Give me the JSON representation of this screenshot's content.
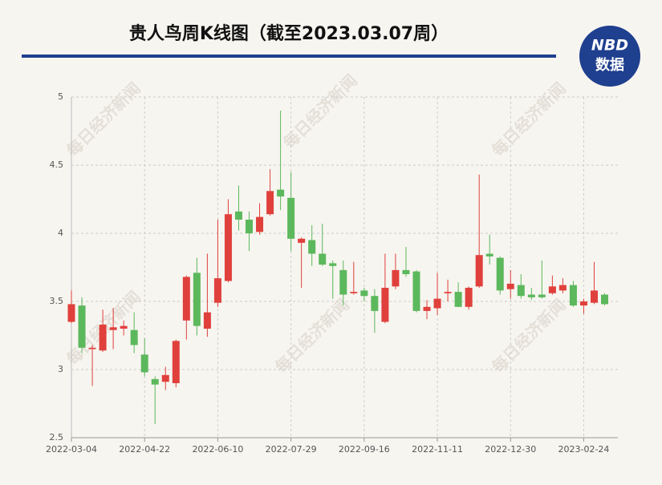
{
  "chart_data": {
    "type": "candlestick",
    "title": "贵人鸟周K线图（截至2023.03.07周）",
    "logo": {
      "line1": "NBD",
      "line2": "数据"
    },
    "watermark": "每日经济新闻",
    "up_color": "#e0403c",
    "down_color": "#5cb85c",
    "grid": true,
    "ylim": [
      2.5,
      5
    ],
    "yticks": [
      2.5,
      3,
      3.5,
      4,
      4.5,
      5
    ],
    "categories": [
      "2022-03-04",
      null,
      null,
      null,
      null,
      null,
      null,
      "2022-04-22",
      null,
      null,
      null,
      null,
      null,
      null,
      "2022-06-10",
      null,
      null,
      null,
      null,
      null,
      null,
      "2022-07-29",
      null,
      null,
      null,
      null,
      null,
      null,
      "2022-09-16",
      null,
      null,
      null,
      null,
      null,
      null,
      "2022-11-11",
      null,
      null,
      null,
      null,
      null,
      null,
      "2022-12-30",
      null,
      null,
      null,
      null,
      null,
      null,
      "2023-02-24",
      null,
      null
    ],
    "open": [
      3.35,
      3.47,
      3.15,
      3.14,
      3.29,
      3.3,
      3.29,
      3.11,
      2.93,
      2.91,
      2.9,
      3.36,
      3.71,
      3.3,
      3.49,
      3.65,
      4.16,
      4.1,
      4.01,
      4.14,
      4.32,
      4.26,
      3.93,
      3.95,
      3.85,
      3.78,
      3.73,
      3.56,
      3.58,
      3.54,
      3.35,
      3.61,
      3.73,
      3.72,
      3.43,
      3.45,
      3.56,
      3.57,
      3.46,
      3.61,
      3.85,
      3.82,
      3.59,
      3.62,
      3.55,
      3.55,
      3.56,
      3.58,
      3.62,
      3.47,
      3.49,
      3.55
    ],
    "high": [
      3.58,
      3.53,
      3.18,
      3.44,
      3.45,
      3.36,
      3.42,
      3.23,
      2.95,
      3.02,
      3.22,
      3.69,
      3.82,
      3.85,
      4.1,
      4.25,
      4.35,
      4.16,
      4.22,
      4.47,
      4.9,
      4.45,
      3.97,
      4.06,
      4.07,
      3.8,
      3.8,
      3.79,
      3.6,
      3.59,
      3.85,
      3.85,
      3.9,
      3.73,
      3.51,
      3.71,
      3.66,
      3.64,
      3.61,
      4.43,
      3.99,
      3.83,
      3.73,
      3.7,
      3.6,
      3.8,
      3.69,
      3.67,
      3.65,
      3.52,
      3.79,
      3.56
    ],
    "low": [
      3.34,
      3.12,
      2.88,
      3.13,
      3.15,
      3.25,
      3.12,
      2.95,
      2.6,
      2.85,
      2.87,
      3.22,
      3.25,
      3.24,
      3.46,
      3.64,
      4.02,
      3.87,
      3.99,
      4.13,
      4.17,
      3.87,
      3.6,
      3.76,
      3.76,
      3.52,
      3.47,
      3.55,
      3.5,
      3.27,
      3.34,
      3.59,
      3.68,
      3.42,
      3.37,
      3.4,
      3.5,
      3.46,
      3.44,
      3.6,
      3.77,
      3.55,
      3.52,
      3.52,
      3.51,
      3.52,
      3.55,
      3.56,
      3.46,
      3.41,
      3.48,
      3.47
    ],
    "close": [
      3.48,
      3.16,
      3.16,
      3.33,
      3.31,
      3.32,
      3.18,
      2.98,
      2.89,
      2.96,
      3.21,
      3.68,
      3.32,
      3.42,
      3.67,
      4.14,
      4.1,
      4.0,
      4.12,
      4.31,
      4.27,
      3.96,
      3.96,
      3.85,
      3.77,
      3.76,
      3.55,
      3.57,
      3.54,
      3.43,
      3.6,
      3.73,
      3.7,
      3.43,
      3.46,
      3.52,
      3.57,
      3.46,
      3.6,
      3.84,
      3.83,
      3.58,
      3.63,
      3.54,
      3.53,
      3.53,
      3.61,
      3.62,
      3.47,
      3.5,
      3.58,
      3.48
    ]
  }
}
